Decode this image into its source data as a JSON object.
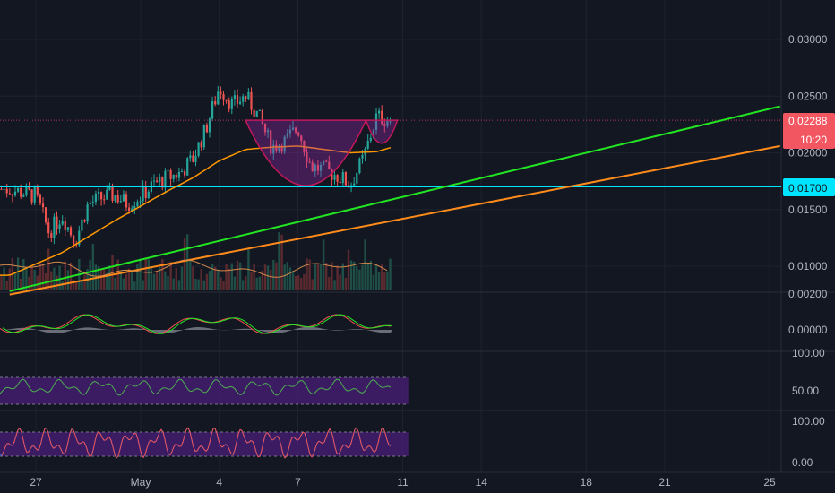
{
  "chart_data": {
    "type": "candlestick",
    "colors": {
      "background": "#131722",
      "up": "#26a69a",
      "down": "#ef5350",
      "volume_up": "#1f4e46",
      "volume_down": "#5b2a2f",
      "ma_orange": "#ff9800",
      "ma_brown": "#d2884b",
      "trendline_green": "#22e622",
      "trendline_orange": "#ff8c1a",
      "support_line": "#00e5ff",
      "resistance_line": "#b2385e",
      "pattern_fill": "#9c27b0",
      "grid": "#1e222d",
      "axis_text": "#b2b5be",
      "price_badge": "#f25661",
      "support_badge": "#00e5ff"
    },
    "price_axis": {
      "ticks": [
        "0.03000",
        "0.02500",
        "0.02000",
        "0.01500",
        "0.01000"
      ],
      "tick_values": [
        0.03,
        0.025,
        0.02,
        0.015,
        0.01
      ],
      "range": [
        0.0073,
        0.0335
      ]
    },
    "current_price": {
      "label": "0.02288",
      "value": 0.02288,
      "countdown": "10:20"
    },
    "support_level": {
      "label": "0.01700",
      "value": 0.017
    },
    "x_axis": {
      "labels": [
        "27",
        "May",
        "4",
        "7",
        "11",
        "14",
        "18",
        "21",
        "25"
      ],
      "label_day_index": [
        0,
        4,
        7,
        10,
        14,
        17,
        21,
        24,
        28
      ]
    },
    "price_path": {
      "day_index": [
        -1,
        0,
        0.5,
        1,
        1.5,
        2,
        2.5,
        3,
        3.5,
        4,
        4.5,
        5,
        5.5,
        6,
        6.5,
        7,
        7.5,
        8,
        8.5,
        9,
        9.5,
        10,
        10.5,
        11,
        11.5,
        12,
        12.5,
        13,
        13.6
      ],
      "close": [
        0.0168,
        0.0162,
        0.013,
        0.0145,
        0.0122,
        0.0155,
        0.016,
        0.0163,
        0.0155,
        0.0162,
        0.0172,
        0.0178,
        0.0182,
        0.0195,
        0.0222,
        0.0258,
        0.0242,
        0.025,
        0.0232,
        0.0205,
        0.021,
        0.0222,
        0.0188,
        0.0185,
        0.018,
        0.0172,
        0.0195,
        0.0232,
        0.0228
      ]
    },
    "moving_average": {
      "day_index": [
        -1,
        1,
        3,
        5,
        6,
        7,
        8,
        9,
        10,
        11,
        12,
        13,
        13.6
      ],
      "value": [
        0.0092,
        0.0112,
        0.014,
        0.0166,
        0.0178,
        0.0193,
        0.0203,
        0.0205,
        0.0206,
        0.0203,
        0.02,
        0.0201,
        0.0205
      ]
    },
    "trendlines": [
      {
        "name": "",
        "color": "green",
        "from": {
          "day": -1,
          "price": 0.0078
        },
        "to": {
          "day": 28.4,
          "price": 0.0241
        }
      },
      {
        "name": "",
        "color": "orange",
        "from": {
          "day": -1,
          "price": 0.0075
        },
        "to": {
          "day": 28.4,
          "price": 0.0206
        }
      }
    ],
    "pattern": {
      "kind": "cup and handle",
      "rim_price": 0.02288,
      "cup_start_day": 8.0,
      "cup_end_day": 12.6,
      "handle_end_day": 13.8
    },
    "panels": [
      {
        "name": "",
        "ticks": [
          "0.00200",
          "0.00000"
        ],
        "tick_values": [
          0.002,
          0.0
        ]
      },
      {
        "name": "",
        "ticks": [
          "100.00",
          "50.00"
        ],
        "tick_values": [
          100,
          50
        ],
        "band": [
          30,
          70
        ]
      },
      {
        "name": "",
        "ticks": [
          "100.00",
          "0.00"
        ],
        "tick_values": [
          100,
          0
        ],
        "band": [
          20,
          80
        ]
      }
    ]
  }
}
